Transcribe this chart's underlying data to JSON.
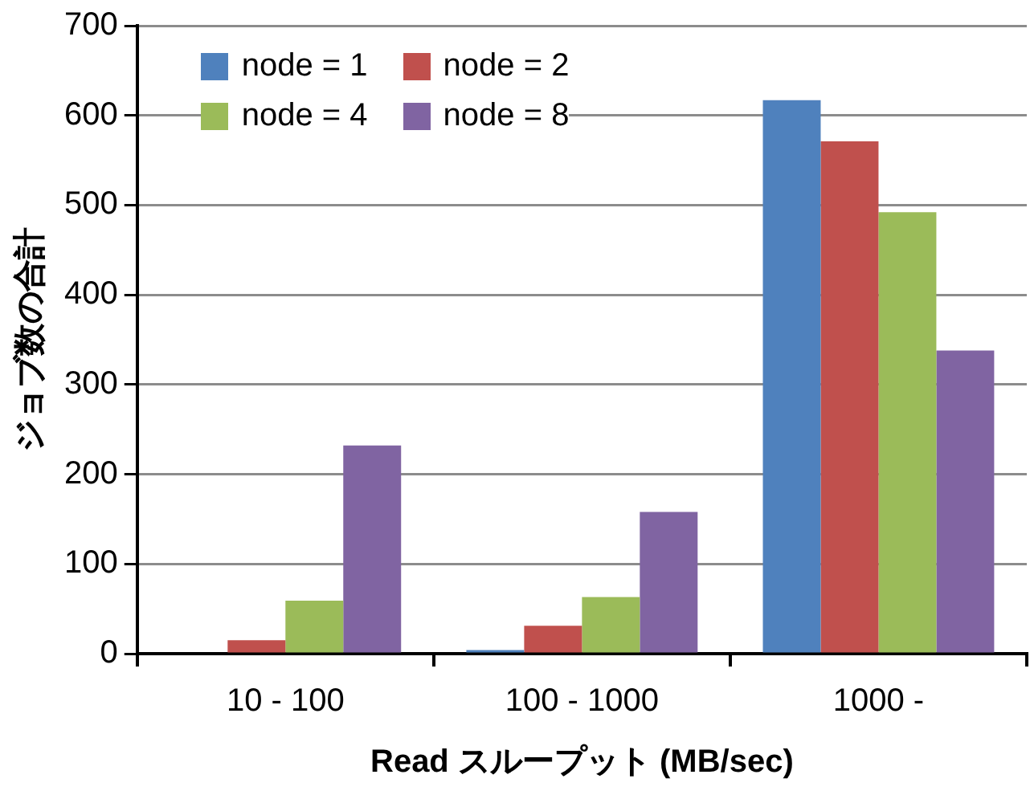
{
  "chart_data": {
    "type": "bar",
    "xlabel": "Read スループット (MB/sec)",
    "ylabel": "ジョブ数の合計",
    "categories": [
      "10 - 100",
      "100 - 1000",
      "1000 -"
    ],
    "series": [
      {
        "name": "node = 1",
        "color": "#4f81bd",
        "values": [
          0,
          4,
          617
        ]
      },
      {
        "name": "node = 2",
        "color": "#c0504d",
        "values": [
          15,
          31,
          571
        ]
      },
      {
        "name": "node = 4",
        "color": "#9bbb59",
        "values": [
          59,
          63,
          492
        ]
      },
      {
        "name": "node = 8",
        "color": "#8064a2",
        "values": [
          232,
          158,
          338
        ]
      }
    ],
    "ylim": [
      0,
      700
    ],
    "yticks": [
      0,
      100,
      200,
      300,
      400,
      500,
      600,
      700
    ],
    "grid": "y",
    "legend": "top left"
  }
}
